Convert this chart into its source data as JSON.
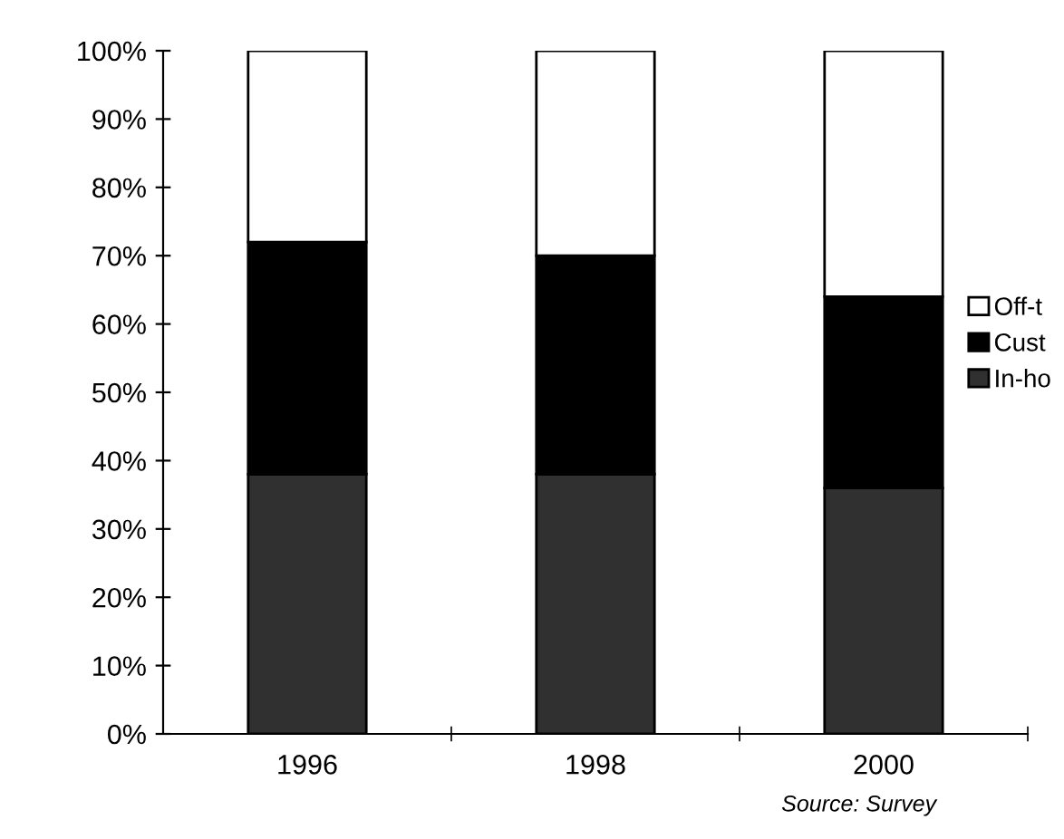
{
  "chart_data": {
    "type": "bar",
    "stacked": true,
    "categories": [
      "1996",
      "1998",
      "2000"
    ],
    "series": [
      {
        "name": "In-ho",
        "color": "#303030",
        "values": [
          38,
          38,
          36
        ]
      },
      {
        "name": "Cust",
        "color": "#000000",
        "values": [
          34,
          32,
          28
        ]
      },
      {
        "name": "Off-t",
        "color": "#ffffff",
        "values": [
          28,
          30,
          36
        ]
      }
    ],
    "ylim": [
      0,
      100
    ],
    "yticks": [
      {
        "value": 0,
        "label": "0%"
      },
      {
        "value": 10,
        "label": "10%"
      },
      {
        "value": 20,
        "label": "20%"
      },
      {
        "value": 30,
        "label": "30%"
      },
      {
        "value": 40,
        "label": "40%"
      },
      {
        "value": 50,
        "label": "50%"
      },
      {
        "value": 60,
        "label": "60%"
      },
      {
        "value": 70,
        "label": "70%"
      },
      {
        "value": 80,
        "label": "80%"
      },
      {
        "value": 90,
        "label": "90%"
      },
      {
        "value": 100,
        "label": "100%"
      }
    ],
    "grid": false,
    "legend": "right",
    "annotations": [
      "Source: Survey"
    ]
  }
}
